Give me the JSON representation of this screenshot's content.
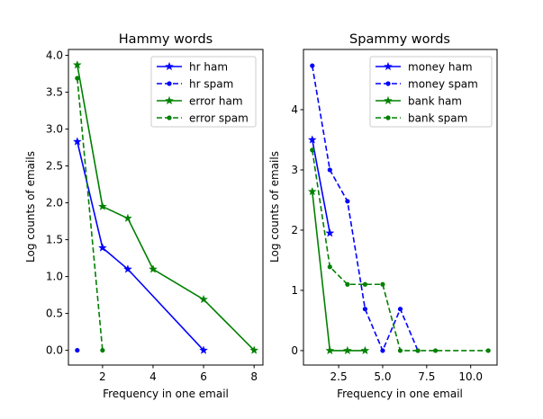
{
  "chart_data": [
    {
      "type": "line",
      "title": "Hammy words",
      "xlabel": "Frequency in one email",
      "ylabel": "Log counts of emails",
      "xlim": [
        0.65,
        8.35
      ],
      "ylim": [
        -0.2,
        4.08
      ],
      "xticks": [
        2,
        4,
        6,
        8
      ],
      "xtick_labels": [
        "2",
        "4",
        "6",
        "8"
      ],
      "yticks": [
        0.0,
        0.5,
        1.0,
        1.5,
        2.0,
        2.5,
        3.0,
        3.5,
        4.0
      ],
      "ytick_labels": [
        "0.0",
        "0.5",
        "1.0",
        "1.5",
        "2.0",
        "2.5",
        "3.0",
        "3.5",
        "4.0"
      ],
      "legend_position": "top-right",
      "series": [
        {
          "name": "hr ham",
          "color": "#0000ff",
          "linestyle": "solid",
          "marker": "star",
          "x": [
            1,
            2,
            3,
            6
          ],
          "y": [
            2.83,
            1.39,
            1.1,
            0.0
          ]
        },
        {
          "name": "hr spam",
          "color": "#0000ff",
          "linestyle": "dashed",
          "marker": "dot",
          "x": [
            1
          ],
          "y": [
            0.0
          ]
        },
        {
          "name": "error ham",
          "color": "#008000",
          "linestyle": "solid",
          "marker": "star",
          "x": [
            1,
            2,
            3,
            4,
            6,
            8
          ],
          "y": [
            3.87,
            1.95,
            1.79,
            1.1,
            0.69,
            0.0
          ]
        },
        {
          "name": "error spam",
          "color": "#008000",
          "linestyle": "dashed",
          "marker": "dot",
          "x": [
            1,
            2
          ],
          "y": [
            3.69,
            0.0
          ]
        }
      ]
    },
    {
      "type": "line",
      "title": "Spammy words",
      "xlabel": "Frequency in one email",
      "ylabel": "Log counts of emails",
      "xlim": [
        0.5,
        11.5
      ],
      "ylim": [
        -0.24,
        5.0
      ],
      "xticks": [
        2.5,
        5.0,
        7.5,
        10.0
      ],
      "xtick_labels": [
        "2.5",
        "5.0",
        "7.5",
        "10.0"
      ],
      "yticks": [
        0,
        1,
        2,
        3,
        4
      ],
      "ytick_labels": [
        "0",
        "1",
        "2",
        "3",
        "4"
      ],
      "legend_position": "top-right",
      "series": [
        {
          "name": "money ham",
          "color": "#0000ff",
          "linestyle": "solid",
          "marker": "star",
          "x": [
            1,
            2
          ],
          "y": [
            3.5,
            1.95
          ]
        },
        {
          "name": "money spam",
          "color": "#0000ff",
          "linestyle": "dashed",
          "marker": "dot",
          "x": [
            1,
            2,
            3,
            4,
            5,
            6,
            7
          ],
          "y": [
            4.73,
            3.0,
            2.48,
            0.69,
            0.0,
            0.69,
            0.0
          ]
        },
        {
          "name": "bank ham",
          "color": "#008000",
          "linestyle": "solid",
          "marker": "star",
          "x": [
            1,
            2,
            3,
            4
          ],
          "y": [
            2.64,
            0.0,
            0.0,
            0.0
          ]
        },
        {
          "name": "bank spam",
          "color": "#008000",
          "linestyle": "dashed",
          "marker": "dot",
          "x": [
            1,
            2,
            3,
            4,
            5,
            6,
            7,
            8,
            11
          ],
          "y": [
            3.33,
            1.39,
            1.1,
            1.1,
            1.1,
            0.0,
            0.0,
            0.0,
            0.0
          ]
        }
      ]
    }
  ]
}
